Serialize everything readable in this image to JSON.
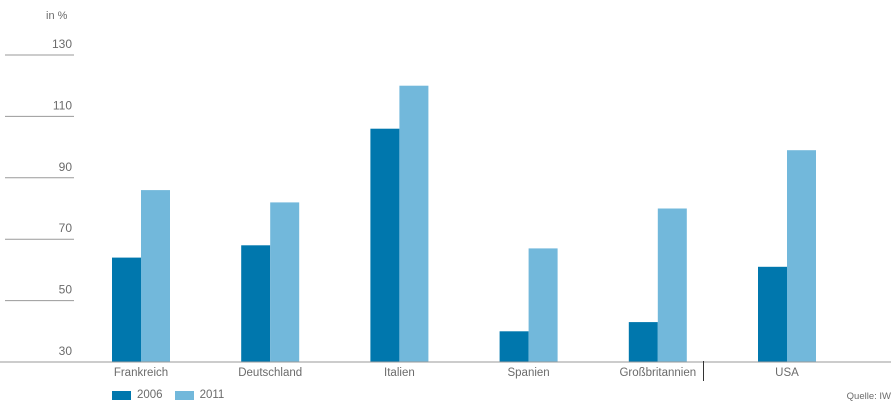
{
  "chart_data": {
    "type": "bar",
    "unit_label": "in %",
    "categories": [
      "Frankreich",
      "Deutschland",
      "Italien",
      "Spanien",
      "Großbritannien",
      "USA"
    ],
    "series": [
      {
        "name": "2006",
        "color": "#0077ad",
        "values": [
          64,
          68,
          106,
          40,
          43,
          61
        ]
      },
      {
        "name": "2011",
        "color": "#72b8db",
        "values": [
          86,
          82,
          120,
          67,
          80,
          99
        ]
      }
    ],
    "y_ticks": [
      30,
      50,
      70,
      90,
      110,
      130
    ],
    "ylim": [
      30,
      130
    ],
    "grid": false,
    "legend_position": "bottom-left",
    "source": "Quelle: IW"
  }
}
